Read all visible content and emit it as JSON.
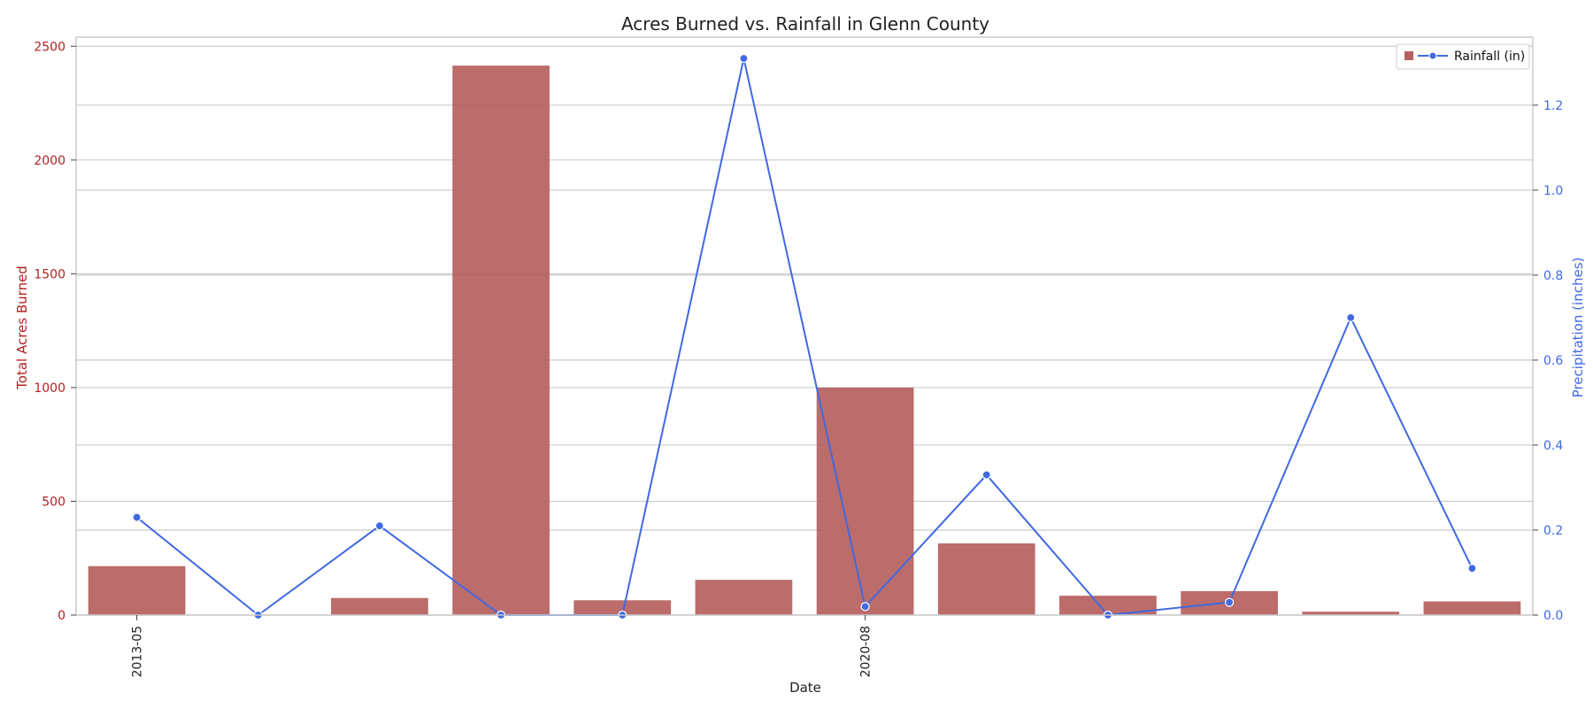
{
  "chart_data": {
    "type": "bar+line",
    "title": "Acres Burned vs. Rainfall in Glenn County",
    "xlabel": "Date",
    "x_tick_labels": [
      {
        "index": 0,
        "label": "2013-05"
      },
      {
        "index": 6,
        "label": "2020-08"
      }
    ],
    "n_categories": 12,
    "y_left": {
      "label": "Total Acres Burned",
      "ticks": [
        0,
        500,
        1000,
        1500,
        2000,
        2500
      ],
      "range": [
        0,
        2540
      ]
    },
    "y_right": {
      "label": "Precipitation (inches)",
      "ticks": [
        0.0,
        0.2,
        0.4,
        0.6,
        0.8,
        1.0,
        1.2
      ],
      "range": [
        0,
        1.36
      ]
    },
    "series": [
      {
        "kind": "bar",
        "axis": "left",
        "color": "#b5605e",
        "values": [
          215,
          0,
          75,
          2415,
          65,
          155,
          1000,
          315,
          85,
          105,
          15,
          60
        ]
      },
      {
        "kind": "line",
        "axis": "right",
        "name": "Rainfall (in)",
        "color": "#4169e1",
        "values": [
          0.23,
          0.0,
          0.21,
          0.0,
          0.0,
          1.31,
          0.02,
          0.33,
          0.0,
          0.03,
          0.7,
          0.11
        ]
      }
    ],
    "grid": true,
    "legend_position": "top-right"
  },
  "colors": {
    "left_axis": "#b22222",
    "right_axis": "#4169e1",
    "grid": "#cccccc",
    "frame": "#cccccc"
  }
}
